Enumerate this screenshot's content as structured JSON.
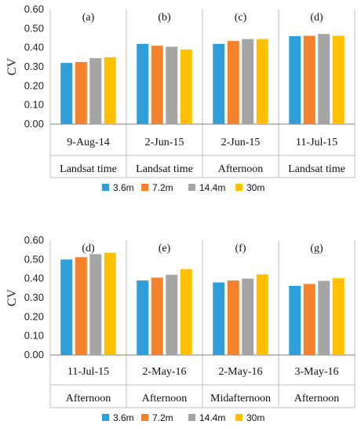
{
  "colors": {
    "series": [
      "#2E9FD9",
      "#F5822A",
      "#A5A5A5",
      "#FFC000"
    ],
    "grid": "#bfbfbf",
    "axis": "#7f7f7f"
  },
  "chart_data": [
    {
      "type": "bar",
      "ylabel": "CV",
      "ylim": [
        0,
        0.6
      ],
      "yticks": [
        "0.00",
        "0.10",
        "0.20",
        "0.30",
        "0.40",
        "0.50",
        "0.60"
      ],
      "grid": "vertical panel dividers",
      "legend": "bottom",
      "series_names": [
        "3.6m",
        "7.2m",
        "14.4m",
        "30m"
      ],
      "panels": [
        {
          "label": "(a)",
          "date": "9-Aug-14",
          "time": "Landsat time",
          "values": [
            0.32,
            0.325,
            0.345,
            0.35
          ]
        },
        {
          "label": "(b)",
          "date": "2-Jun-15",
          "time": "Landsat time",
          "values": [
            0.42,
            0.41,
            0.405,
            0.39
          ]
        },
        {
          "label": "(c)",
          "date": "2-Jun-15",
          "time": "Afternoon",
          "values": [
            0.42,
            0.435,
            0.445,
            0.445
          ]
        },
        {
          "label": "(d)",
          "date": "11-Jul-15",
          "time": "Landsat time",
          "values": [
            0.46,
            0.462,
            0.472,
            0.462
          ]
        }
      ]
    },
    {
      "type": "bar",
      "ylabel": "CV",
      "ylim": [
        0,
        0.6
      ],
      "yticks": [
        "0.00",
        "0.10",
        "0.20",
        "0.30",
        "0.40",
        "0.50",
        "0.60"
      ],
      "grid": "vertical panel dividers",
      "legend": "bottom",
      "series_names": [
        "3.6m",
        "7.2m",
        "14.4m",
        "30m"
      ],
      "panels": [
        {
          "label": "(d)",
          "date": "11-Jul-15",
          "time": "Afternoon",
          "values": [
            0.5,
            0.512,
            0.528,
            0.535
          ]
        },
        {
          "label": "(e)",
          "date": "2-May-16",
          "time": "Afternoon",
          "values": [
            0.39,
            0.405,
            0.42,
            0.45
          ]
        },
        {
          "label": "(f)",
          "date": "2-May-16",
          "time": "Midafternoon",
          "values": [
            0.38,
            0.39,
            0.4,
            0.422
          ]
        },
        {
          "label": "(g)",
          "date": "3-May-16",
          "time": "Afternoon",
          "values": [
            0.362,
            0.372,
            0.388,
            0.402
          ]
        }
      ]
    }
  ]
}
